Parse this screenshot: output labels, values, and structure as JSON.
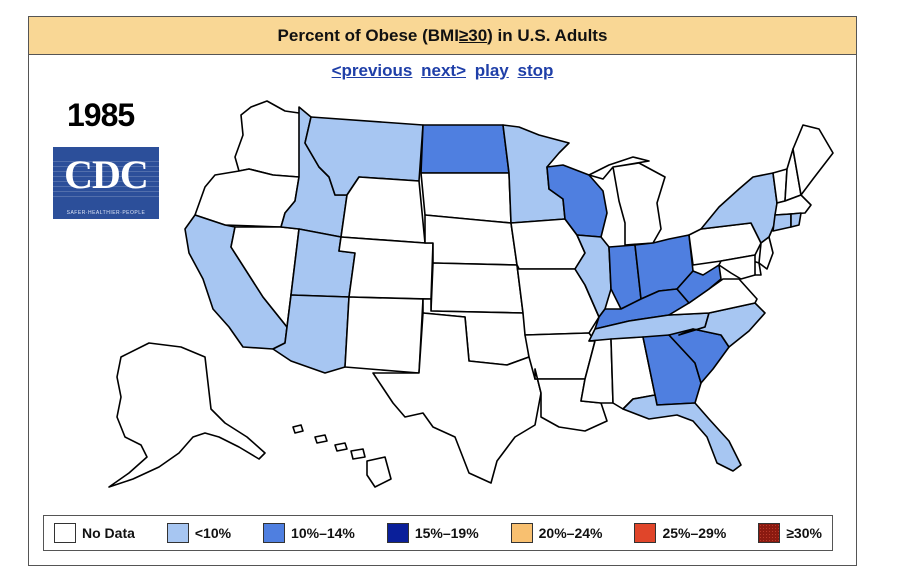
{
  "title": {
    "prefix": "Percent of Obese (BMI ",
    "ge": "≥30",
    "suffix": ") in U.S. Adults"
  },
  "nav": {
    "previous": "<previous",
    "next": "next>",
    "play": "play",
    "stop": "stop"
  },
  "year": "1985",
  "logo": {
    "letters": "CDC",
    "tagline": "SAFER·HEALTHIER·PEOPLE"
  },
  "colors": {
    "no_data": "#ffffff",
    "lt10": "#a7c6f2",
    "r10_14": "#4f7fe0",
    "r15_19": "#0a1f9a",
    "r20_24": "#f8c070",
    "r25_29": "#e0452a",
    "ge30": "#8b1a10",
    "outline": "#000000"
  },
  "legend": [
    {
      "key": "no_data",
      "label": "No Data"
    },
    {
      "key": "lt10",
      "label": "<10%"
    },
    {
      "key": "r10_14",
      "label": "10%–14%"
    },
    {
      "key": "r15_19",
      "label": "15%–19%"
    },
    {
      "key": "r20_24",
      "label": "20%–24%"
    },
    {
      "key": "r25_29",
      "label": "25%–29%"
    },
    {
      "key": "ge30",
      "label": "≥30%"
    }
  ],
  "states": {
    "WA": "no_data",
    "OR": "no_data",
    "CA": "lt10",
    "NV": "no_data",
    "ID": "lt10",
    "MT": "lt10",
    "WY": "no_data",
    "UT": "lt10",
    "AZ": "lt10",
    "CO": "no_data",
    "NM": "no_data",
    "ND": "r10_14",
    "SD": "no_data",
    "NE": "no_data",
    "KS": "no_data",
    "OK": "no_data",
    "TX": "no_data",
    "MN": "lt10",
    "IA": "no_data",
    "MO": "no_data",
    "AR": "no_data",
    "LA": "no_data",
    "WI": "r10_14",
    "IL": "lt10",
    "MI": "no_data",
    "IN": "r10_14",
    "OH": "r10_14",
    "KY": "r10_14",
    "TN": "lt10",
    "MS": "no_data",
    "AL": "no_data",
    "GA": "r10_14",
    "FL": "lt10",
    "SC": "r10_14",
    "NC": "lt10",
    "VA": "no_data",
    "WV": "r10_14",
    "PA": "no_data",
    "NY": "lt10",
    "VT": "no_data",
    "NH": "no_data",
    "ME": "no_data",
    "MA": "no_data",
    "CT": "lt10",
    "RI": "lt10",
    "NJ": "no_data",
    "DE": "no_data",
    "MD": "no_data",
    "AK": "no_data",
    "HI": "no_data"
  }
}
